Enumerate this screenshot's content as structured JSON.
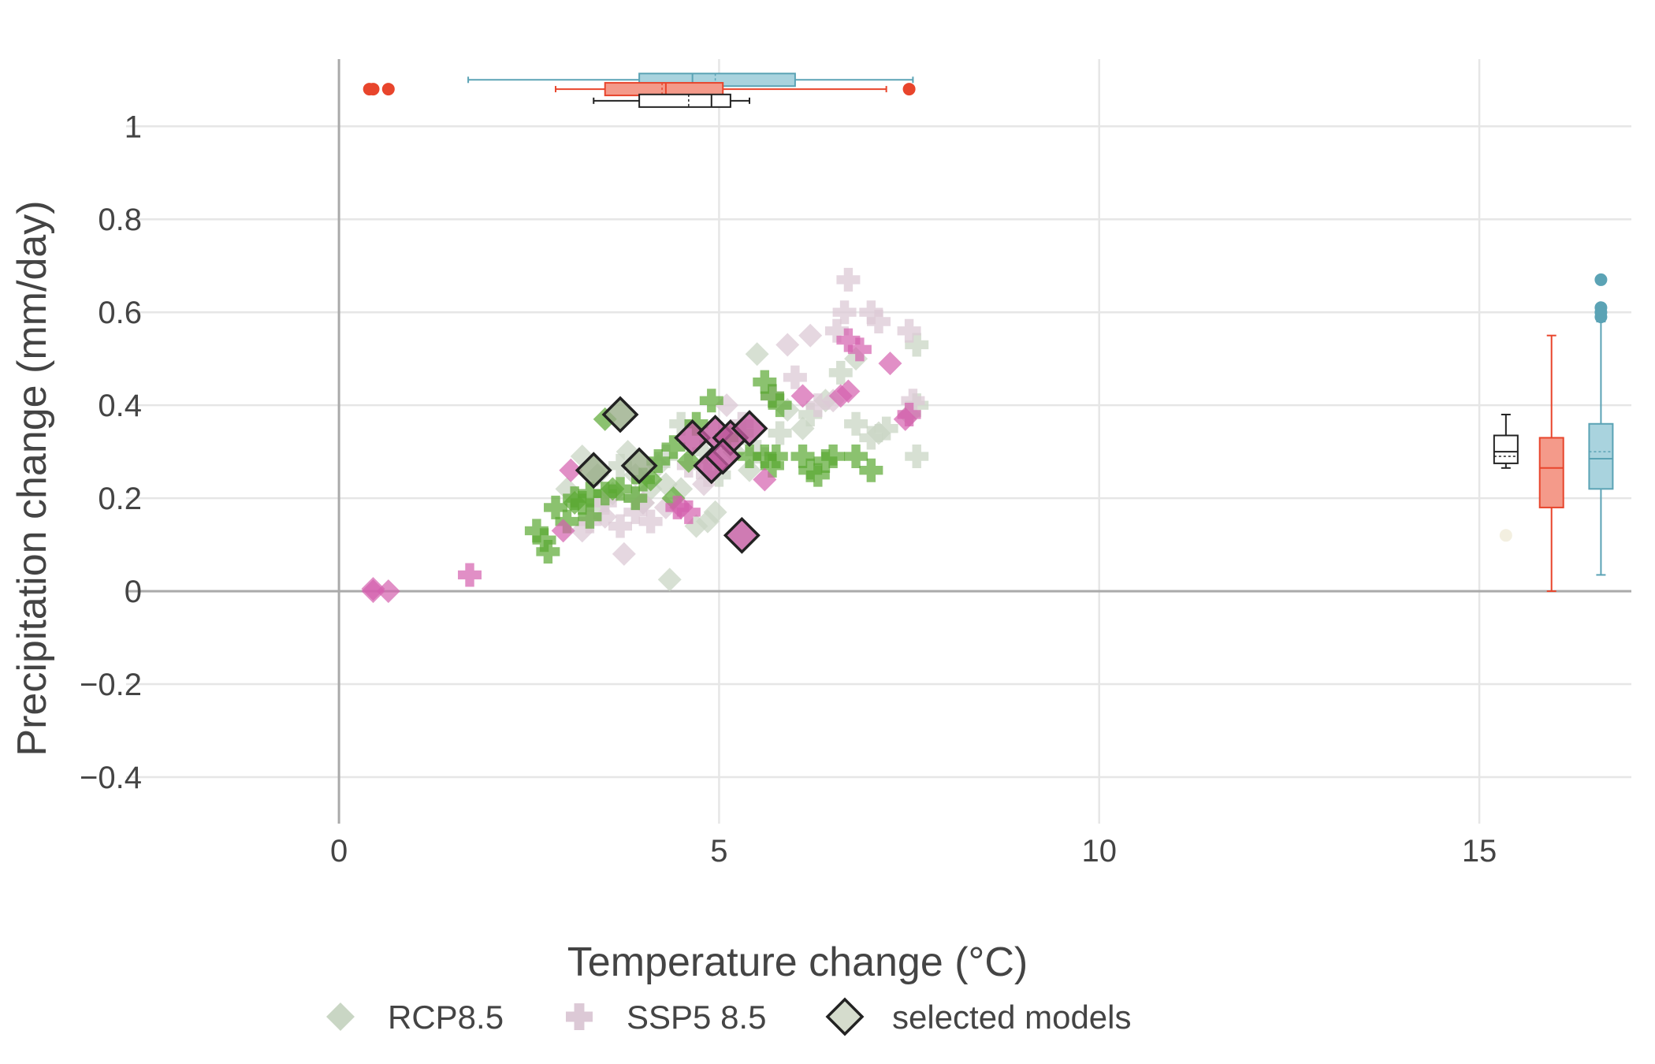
{
  "chart_data": {
    "type": "scatter",
    "xlabel": "Temperature change (°C)",
    "ylabel": "Precipitation change (mm/day)",
    "xlim": [
      -2.8,
      17.0
    ],
    "ylim": [
      -0.5,
      1.17
    ],
    "xticks": [
      0,
      5,
      10,
      15
    ],
    "yticks": [
      -0.4,
      -0.2,
      0,
      0.2,
      0.4,
      0.6,
      0.8,
      1
    ],
    "xtick_labels": [
      "0",
      "5",
      "10",
      "15"
    ],
    "ytick_labels": [
      "−0.4",
      "−0.2",
      "0",
      "0.2",
      "0.4",
      "0.6",
      "0.8",
      "1"
    ],
    "grid": true,
    "legend_position": "bottom",
    "colors": {
      "rcp_green": "#5aa832",
      "rcp_faded": "#c9d6c4",
      "ssp_pink": "#d45fae",
      "ssp_faded": "#dcc9d6",
      "selected_fill": "#a8b89a",
      "box_black": "#222222",
      "box_red": "#e8452c",
      "box_red_fill": "#f49a8a",
      "box_blue": "#5ba3b5",
      "box_blue_fill": "#a9d3de"
    },
    "legend": [
      {
        "key": "rcp",
        "label": "RCP8.5",
        "shape": "diamond"
      },
      {
        "key": "ssp",
        "label": "SSP5 8.5",
        "shape": "cross"
      },
      {
        "key": "sel",
        "label": "selected models",
        "shape": "diamond-outline"
      }
    ],
    "series": [
      {
        "key": "rcp_green",
        "shape": "cross",
        "points": [
          [
            2.6,
            0.13
          ],
          [
            2.7,
            0.11
          ],
          [
            2.75,
            0.085
          ],
          [
            2.85,
            0.18
          ],
          [
            3.0,
            0.15
          ],
          [
            3.1,
            0.2
          ],
          [
            3.2,
            0.19
          ],
          [
            3.3,
            0.16
          ],
          [
            3.3,
            0.21
          ],
          [
            3.5,
            0.21
          ],
          [
            3.7,
            0.22
          ],
          [
            3.9,
            0.2
          ],
          [
            4.0,
            0.24
          ],
          [
            4.2,
            0.28
          ],
          [
            4.4,
            0.31
          ],
          [
            4.7,
            0.36
          ],
          [
            4.9,
            0.41
          ],
          [
            5.1,
            0.33
          ],
          [
            5.4,
            0.29
          ],
          [
            5.6,
            0.45
          ],
          [
            5.7,
            0.42
          ],
          [
            5.8,
            0.4
          ],
          [
            5.6,
            0.29
          ],
          [
            5.7,
            0.27
          ],
          [
            5.75,
            0.29
          ],
          [
            6.1,
            0.29
          ],
          [
            6.2,
            0.26
          ],
          [
            6.3,
            0.25
          ],
          [
            6.4,
            0.28
          ],
          [
            6.5,
            0.29
          ],
          [
            6.8,
            0.29
          ],
          [
            7.0,
            0.26
          ]
        ]
      },
      {
        "key": "rcp_green",
        "shape": "diamond",
        "points": [
          [
            3.5,
            0.37
          ],
          [
            3.1,
            0.19
          ],
          [
            3.6,
            0.22
          ],
          [
            4.1,
            0.24
          ],
          [
            4.4,
            0.2
          ],
          [
            4.6,
            0.28
          ]
        ]
      },
      {
        "key": "rcp_faded",
        "shape": "diamond",
        "points": [
          [
            3.0,
            0.22
          ],
          [
            3.2,
            0.29
          ],
          [
            3.4,
            0.25
          ],
          [
            3.6,
            0.21
          ],
          [
            3.8,
            0.3
          ],
          [
            3.9,
            0.25
          ],
          [
            4.0,
            0.19
          ],
          [
            4.1,
            0.22
          ],
          [
            4.2,
            0.27
          ],
          [
            4.3,
            0.23
          ],
          [
            4.5,
            0.22
          ],
          [
            4.35,
            0.025
          ],
          [
            4.7,
            0.14
          ],
          [
            4.85,
            0.15
          ],
          [
            4.95,
            0.17
          ],
          [
            5.2,
            0.3
          ],
          [
            5.4,
            0.26
          ],
          [
            5.5,
            0.51
          ],
          [
            5.9,
            0.39
          ],
          [
            6.1,
            0.35
          ],
          [
            6.4,
            0.41
          ],
          [
            6.8,
            0.5
          ],
          [
            7.1,
            0.34
          ],
          [
            7.5,
            0.38
          ]
        ]
      },
      {
        "key": "rcp_faded",
        "shape": "cross",
        "points": [
          [
            3.4,
            0.18
          ],
          [
            3.7,
            0.27
          ],
          [
            3.9,
            0.2
          ],
          [
            4.3,
            0.29
          ],
          [
            4.5,
            0.36
          ],
          [
            4.8,
            0.3
          ],
          [
            5.0,
            0.25
          ],
          [
            5.3,
            0.34
          ],
          [
            5.5,
            0.3
          ],
          [
            5.8,
            0.34
          ],
          [
            6.2,
            0.38
          ],
          [
            6.6,
            0.47
          ],
          [
            6.8,
            0.36
          ],
          [
            7.0,
            0.33
          ],
          [
            7.2,
            0.35
          ],
          [
            7.6,
            0.53
          ],
          [
            7.6,
            0.4
          ],
          [
            7.6,
            0.29
          ]
        ]
      },
      {
        "key": "ssp_pink",
        "shape": "cross",
        "points": [
          [
            1.72,
            0.035
          ],
          [
            4.45,
            0.18
          ],
          [
            4.6,
            0.17
          ],
          [
            6.7,
            0.54
          ],
          [
            6.85,
            0.52
          ],
          [
            7.5,
            0.38
          ]
        ]
      },
      {
        "key": "ssp_pink",
        "shape": "diamond",
        "points": [
          [
            0.45,
            0.0
          ],
          [
            0.45,
            0.005
          ],
          [
            0.65,
            0.0
          ],
          [
            2.95,
            0.13
          ],
          [
            3.05,
            0.26
          ],
          [
            4.5,
            0.18
          ],
          [
            5.6,
            0.24
          ],
          [
            6.1,
            0.42
          ],
          [
            6.6,
            0.42
          ],
          [
            6.7,
            0.43
          ],
          [
            7.25,
            0.49
          ],
          [
            7.45,
            0.37
          ]
        ]
      },
      {
        "key": "ssp_faded",
        "shape": "diamond",
        "points": [
          [
            3.2,
            0.13
          ],
          [
            3.5,
            0.16
          ],
          [
            3.75,
            0.08
          ],
          [
            4.0,
            0.19
          ],
          [
            4.3,
            0.18
          ],
          [
            4.8,
            0.23
          ],
          [
            5.1,
            0.4
          ],
          [
            5.2,
            0.34
          ],
          [
            5.9,
            0.53
          ],
          [
            6.2,
            0.55
          ],
          [
            6.5,
            0.41
          ]
        ]
      },
      {
        "key": "ssp_faded",
        "shape": "cross",
        "points": [
          [
            3.3,
            0.15
          ],
          [
            3.5,
            0.19
          ],
          [
            3.7,
            0.14
          ],
          [
            3.9,
            0.17
          ],
          [
            4.1,
            0.15
          ],
          [
            4.6,
            0.27
          ],
          [
            4.85,
            0.25
          ],
          [
            5.3,
            0.36
          ],
          [
            5.7,
            0.42
          ],
          [
            6.0,
            0.46
          ],
          [
            6.3,
            0.4
          ],
          [
            6.55,
            0.56
          ],
          [
            6.65,
            0.6
          ],
          [
            6.7,
            0.67
          ],
          [
            7.0,
            0.6
          ],
          [
            7.1,
            0.58
          ],
          [
            7.5,
            0.56
          ],
          [
            7.55,
            0.41
          ]
        ]
      },
      {
        "key": "selected",
        "shape": "diamond-outline",
        "groups": [
          {
            "fill": "#9aae89",
            "points": [
              [
                3.7,
                0.38
              ],
              [
                3.35,
                0.26
              ],
              [
                3.95,
                0.27
              ]
            ]
          },
          {
            "fill": "#c35aa0",
            "points": [
              [
                4.65,
                0.33
              ],
              [
                4.95,
                0.34
              ],
              [
                5.15,
                0.33
              ],
              [
                5.4,
                0.35
              ],
              [
                4.9,
                0.27
              ],
              [
                5.05,
                0.29
              ],
              [
                5.3,
                0.12
              ]
            ]
          }
        ]
      }
    ],
    "boxplots_horizontal": [
      {
        "name": "box-top-blue",
        "y": 1.1,
        "min": 1.7,
        "q1": 3.95,
        "median": 4.65,
        "mean": 4.95,
        "q3": 6.0,
        "max": 7.55,
        "outliers": [],
        "stroke": "#5ba3b5",
        "fill": "#a9d3de"
      },
      {
        "name": "box-top-red",
        "y": 1.08,
        "min": 2.85,
        "q1": 3.5,
        "median": 4.3,
        "mean": 4.25,
        "q3": 5.05,
        "max": 7.2,
        "outliers": [
          0.4,
          0.45,
          0.65,
          7.5
        ],
        "stroke": "#e8452c",
        "fill": "#f49a8a"
      },
      {
        "name": "box-top-black",
        "y": 1.055,
        "min": 3.35,
        "q1": 3.95,
        "median": 4.9,
        "mean": 4.6,
        "q3": 5.15,
        "max": 5.4,
        "outliers": [],
        "stroke": "#222222",
        "fill": "#ffffff"
      }
    ],
    "boxplots_vertical": [
      {
        "name": "box-right-black",
        "x": 15.35,
        "min": 0.265,
        "q1": 0.275,
        "median": 0.3,
        "mean": 0.29,
        "q3": 0.335,
        "max": 0.38,
        "outliers": [
          0.12
        ],
        "stroke": "#222222",
        "fill": "#ffffff"
      },
      {
        "name": "box-right-red",
        "x": 15.95,
        "min": 0.0,
        "q1": 0.18,
        "median": 0.265,
        "mean": 0.265,
        "q3": 0.33,
        "max": 0.55,
        "outliers": [],
        "stroke": "#e8452c",
        "fill": "#f49a8a"
      },
      {
        "name": "box-right-blue",
        "x": 16.6,
        "min": 0.035,
        "q1": 0.22,
        "median": 0.285,
        "mean": 0.3,
        "q3": 0.36,
        "max": 0.58,
        "outliers": [
          0.59,
          0.6,
          0.61,
          0.67
        ],
        "stroke": "#5ba3b5",
        "fill": "#a9d3de"
      }
    ]
  }
}
